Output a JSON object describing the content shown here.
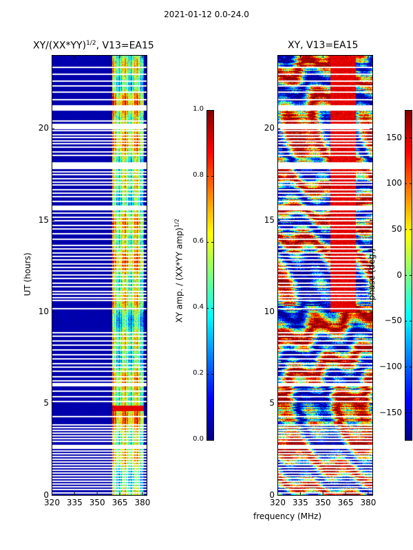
{
  "chart_data": [
    {
      "type": "heatmap",
      "title": "XY/(XX*YY)^1/2, V13=EA15",
      "title_main": "XY/(XX*YY)",
      "title_sup": "1/2",
      "title_tail": ", V13=EA15",
      "xlabel": "frequency (MHz)",
      "ylabel": "UT (hours)",
      "xlim": [
        320,
        383
      ],
      "ylim": [
        0,
        24
      ],
      "xticks": [
        320,
        335,
        350,
        365,
        380
      ],
      "yticks": [
        0,
        5,
        10,
        15,
        20
      ],
      "colorbar": {
        "label_main": "XY amp. / (XX*YY amp)",
        "label_sup": "1/2",
        "range": [
          0.0,
          1.0
        ],
        "ticks": [
          "0.0",
          "0.2",
          "0.4",
          "0.6",
          "0.8",
          "1.0"
        ],
        "tick_values": [
          0.0,
          0.2,
          0.4,
          0.6,
          0.8,
          1.0
        ]
      },
      "features": {
        "background_value": 0.03,
        "high_band_mhz": [
          360,
          381
        ],
        "high_band_value_range": [
          0.35,
          0.75
        ],
        "rfi_spike_ut": [
          4.6,
          4.9
        ],
        "rfi_spike_value": 0.9
      }
    },
    {
      "type": "heatmap",
      "title": "XY, V13=EA15",
      "xlabel": "frequency (MHz)",
      "ylabel": "",
      "xlim": [
        320,
        383
      ],
      "ylim": [
        0,
        24
      ],
      "xticks": [
        320,
        335,
        350,
        365,
        380
      ],
      "yticks": [
        0,
        5,
        10,
        15,
        20
      ],
      "colorbar": {
        "label_main": "phase (deg.)",
        "range": [
          -180,
          180
        ],
        "ticks": [
          "150",
          "100",
          "50",
          "0",
          "−50",
          "−100",
          "−150"
        ],
        "tick_values": [
          150,
          100,
          50,
          0,
          -50,
          -100,
          -150
        ]
      },
      "features": {
        "value_range_deg": [
          -180,
          180
        ],
        "pattern": "phase wraps with frequency and time"
      }
    }
  ],
  "suptitle": "2021-01-12 0.0-24.0",
  "shared_xlabel": "frequency (MHz)",
  "flagged_ut_hours": [
    0.15,
    0.35,
    0.5,
    0.65,
    0.8,
    0.95,
    1.1,
    1.25,
    1.4,
    1.55,
    1.7,
    1.85,
    2.0,
    2.15,
    2.3,
    2.45,
    2.75,
    2.95,
    3.1,
    3.25,
    3.4,
    3.55,
    3.7,
    3.85,
    4.3,
    5.15,
    5.4,
    5.7,
    6.1,
    6.25,
    6.5,
    6.8,
    7.0,
    7.2,
    7.45,
    7.7,
    7.95,
    8.2,
    8.45,
    8.7,
    8.9,
    10.2,
    10.65,
    10.8,
    11.0,
    11.15,
    11.4,
    11.6,
    11.85,
    12.05,
    12.25,
    12.45,
    12.65,
    12.85,
    13.05,
    13.25,
    13.45,
    13.65,
    14.0,
    14.3,
    14.55,
    14.75,
    15.0,
    15.2,
    15.4,
    15.8,
    16.05,
    16.3,
    16.5,
    16.7,
    16.95,
    17.1,
    17.3,
    17.5,
    17.65,
    17.85,
    18.55,
    18.75,
    19.0,
    19.2,
    19.35,
    19.55,
    19.7,
    19.9,
    20.25,
    20.45,
    21.25,
    21.6,
    22.0,
    22.35,
    22.6,
    23.0,
    23.35
  ],
  "flagged_ut_wide": [
    [
      2.55,
      2.7
    ],
    [
      5.95,
      6.08
    ],
    [
      15.55,
      15.75
    ],
    [
      17.9,
      18.15
    ],
    [
      20.0,
      20.2
    ],
    [
      21.0,
      21.2
    ]
  ]
}
